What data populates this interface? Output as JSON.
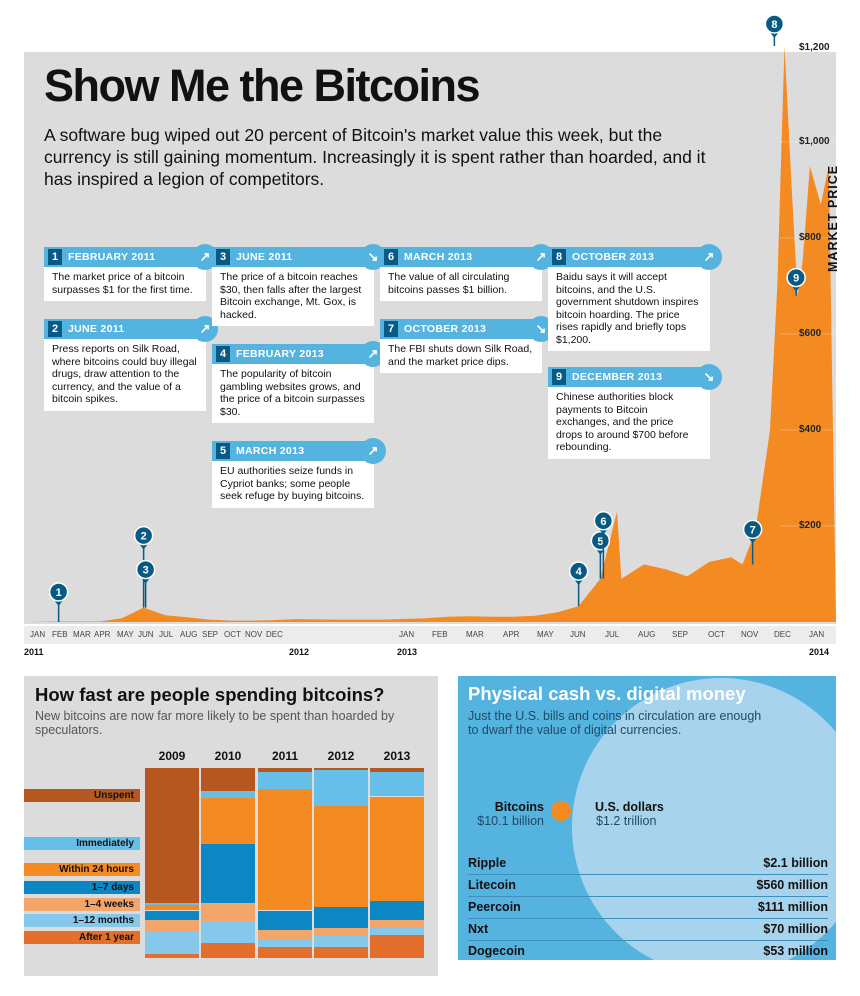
{
  "header": {
    "title": "Show Me the Bitcoins",
    "subtitle": "A software bug wiped out 20 percent of Bitcoin's market value this week, but the currency is still gaining momentum. Increasingly it is spent rather than hoarded, and it has inspired a legion of competitors."
  },
  "colors": {
    "price_area": "#f48a22",
    "callout_blue": "#55b3e0",
    "marker_dark_blue": "#075a84",
    "panel_gray": "#dcdcdc",
    "cash_blue": "#55b3e0"
  },
  "callouts": [
    {
      "num": "1",
      "date": "FEBRUARY 2011",
      "text": "The market price of a bitcoin surpasses $1 for the first time.",
      "trend": "up"
    },
    {
      "num": "2",
      "date": "JUNE 2011",
      "text": "Press reports on Silk Road, where bitcoins could buy illegal drugs, draw attention to the currency, and the value of a bitcoin spikes.",
      "trend": "up"
    },
    {
      "num": "3",
      "date": "JUNE 2011",
      "text": "The price of a bitcoin reaches $30, then falls after the largest Bitcoin exchange, Mt. Gox, is hacked.",
      "trend": "down"
    },
    {
      "num": "4",
      "date": "FEBRUARY 2013",
      "text": "The popularity of bitcoin gambling websites grows, and the price of a bitcoin surpasses $30.",
      "trend": "up"
    },
    {
      "num": "5",
      "date": "MARCH 2013",
      "text": "EU authorities seize funds in Cypriot banks; some people seek refuge by buying bitcoins.",
      "trend": "up"
    },
    {
      "num": "6",
      "date": "MARCH 2013",
      "text": "The value of all circulating bitcoins passes $1 billion.",
      "trend": "up"
    },
    {
      "num": "7",
      "date": "OCTOBER 2013",
      "text": "The FBI shuts down Silk Road, and the market price dips.",
      "trend": "down"
    },
    {
      "num": "8",
      "date": "OCTOBER 2013",
      "text": "Baidu says it will accept bitcoins, and the U.S. government shutdown inspires bitcoin hoarding. The price rises rapidly and briefly tops $1,200.",
      "trend": "up"
    },
    {
      "num": "9",
      "date": "DECEMBER 2013",
      "text": "Chinese authorities block payments to Bitcoin exchanges, and the price drops to around $700 before rebounding.",
      "trend": "down"
    }
  ],
  "spending": {
    "title": "How fast are people spending bitcoins?",
    "subtitle": "New bitcoins are now far more likely to be spent than hoarded by speculators."
  },
  "cash": {
    "title": "Physical cash vs. digital money",
    "subtitle": "Just the U.S. bills and coins in circulation are enough to dwarf the value of digital currencies.",
    "bitcoin_label": "Bitcoins",
    "bitcoin_value": "$10.1 billion",
    "usd_label": "U.S. dollars",
    "usd_value": "$1.2 trillion",
    "currencies": [
      {
        "name": "Ripple",
        "value": "$2.1 billion"
      },
      {
        "name": "Litecoin",
        "value": "$560 million"
      },
      {
        "name": "Peercoin",
        "value": "$111 million"
      },
      {
        "name": "Nxt",
        "value": "$70 million"
      },
      {
        "name": "Dogecoin",
        "value": "$53 million"
      }
    ]
  },
  "chart_data": [
    {
      "type": "area",
      "ylabel": "MARKET PRICE",
      "ylim": [
        0,
        1200
      ],
      "yticks": [
        "$200",
        "$400",
        "$600",
        "$800",
        "$1,000",
        "$1,200"
      ],
      "ytick_values": [
        200,
        400,
        600,
        800,
        1000,
        1200
      ],
      "month_labels": [
        "JAN",
        "FEB",
        "MAR",
        "APR",
        "MAY",
        "JUN",
        "JUL",
        "AUG",
        "SEP",
        "OCT",
        "NOV",
        "DEC",
        "JAN",
        "FEB",
        "MAR",
        "APR",
        "MAY",
        "JUN",
        "JUL",
        "AUG",
        "SEP",
        "OCT",
        "NOV",
        "DEC",
        "JAN"
      ],
      "year_labels": [
        {
          "label": "2011",
          "month_index": 0
        },
        {
          "label": "2012",
          "month_index": 12
        },
        {
          "label": "2013",
          "month_index": 17
        },
        {
          "label": "2014",
          "month_index": 30
        }
      ],
      "points": [
        [
          "2011-01",
          0.3
        ],
        [
          "2011-02",
          1
        ],
        [
          "2011-04",
          1
        ],
        [
          "2011-05",
          8
        ],
        [
          "2011-06",
          30
        ],
        [
          "2011-07",
          14
        ],
        [
          "2011-08",
          10
        ],
        [
          "2011-09",
          5
        ],
        [
          "2011-10",
          3
        ],
        [
          "2011-11",
          3
        ],
        [
          "2011-12",
          4
        ],
        [
          "2012-01",
          6
        ],
        [
          "2012-03",
          5
        ],
        [
          "2012-05",
          5
        ],
        [
          "2012-07",
          8
        ],
        [
          "2012-08",
          11
        ],
        [
          "2012-09",
          12
        ],
        [
          "2012-10",
          11
        ],
        [
          "2012-11",
          11
        ],
        [
          "2012-12",
          13
        ],
        [
          "2013-01",
          20
        ],
        [
          "2013-02",
          33
        ],
        [
          "2013-03",
          90
        ],
        [
          "2013-04-09",
          230
        ],
        [
          "2013-04-15",
          90
        ],
        [
          "2013-05",
          120
        ],
        [
          "2013-06",
          110
        ],
        [
          "2013-07",
          95
        ],
        [
          "2013-08",
          125
        ],
        [
          "2013-09",
          135
        ],
        [
          "2013-10-02",
          120
        ],
        [
          "2013-10-20",
          190
        ],
        [
          "2013-11-10",
          400
        ],
        [
          "2013-11-20",
          700
        ],
        [
          "2013-11-30",
          1200
        ],
        [
          "2013-12-10",
          900
        ],
        [
          "2013-12-18",
          680
        ],
        [
          "2013-12-25",
          750
        ],
        [
          "2014-01-05",
          950
        ],
        [
          "2014-01-20",
          870
        ],
        [
          "2014-01-31",
          950
        ]
      ],
      "markers": [
        {
          "num": "1",
          "date": "2011-02"
        },
        {
          "num": "2",
          "date": "2011-06"
        },
        {
          "num": "3",
          "date": "2011-06"
        },
        {
          "num": "4",
          "date": "2013-02"
        },
        {
          "num": "5",
          "date": "2013-03"
        },
        {
          "num": "6",
          "date": "2013-03"
        },
        {
          "num": "7",
          "date": "2013-10"
        },
        {
          "num": "8",
          "date": "2013-11"
        },
        {
          "num": "9",
          "date": "2013-12"
        }
      ]
    },
    {
      "type": "bar",
      "stacked": true,
      "normalized": true,
      "categories": [
        "2009",
        "2010",
        "2011",
        "2012",
        "2013"
      ],
      "series": [
        {
          "name": "Unspent",
          "color": "#b5571f",
          "values": [
            0.71,
            0.12,
            0.02,
            0.01,
            0.02
          ]
        },
        {
          "name": "Immediately",
          "color": "#66bfe8",
          "values": [
            0.01,
            0.04,
            0.09,
            0.19,
            0.13
          ]
        },
        {
          "name": "Within 24 hours",
          "color": "#f48a22",
          "values": [
            0.03,
            0.24,
            0.64,
            0.53,
            0.55
          ]
        },
        {
          "name": "1–7 days",
          "color": "#0d86c4",
          "values": [
            0.05,
            0.31,
            0.1,
            0.11,
            0.1
          ]
        },
        {
          "name": "1–4 weeks",
          "color": "#f4a66a",
          "values": [
            0.06,
            0.1,
            0.05,
            0.04,
            0.04
          ]
        },
        {
          "name": "1–12 months",
          "color": "#86c8ec",
          "values": [
            0.12,
            0.11,
            0.04,
            0.06,
            0.04
          ]
        },
        {
          "name": "After 1 year",
          "color": "#e2702c",
          "values": [
            0.02,
            0.08,
            0.06,
            0.06,
            0.12
          ]
        }
      ]
    }
  ]
}
